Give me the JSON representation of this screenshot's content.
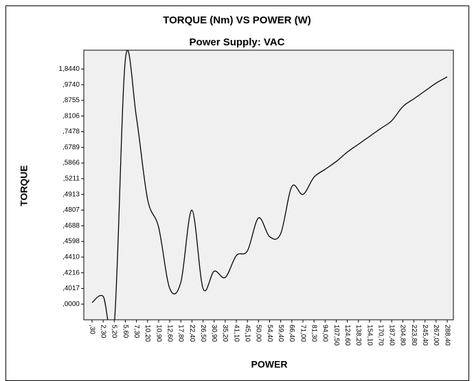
{
  "chart_data": {
    "type": "line",
    "title": "TORQUE (Nm) VS POWER (W)",
    "subtitle": "Power Supply:  VAC",
    "xlabel": "POWER",
    "ylabel": "TORQUE",
    "categories": [
      ",30",
      "2,30",
      "5,20",
      "5,60",
      "7,30",
      "10,20",
      "10,90",
      "12,60",
      "17,80",
      "22,40",
      "26,50",
      "30,90",
      "35,20",
      "41,10",
      "45,10",
      "50,00",
      "54,40",
      "59,40",
      "66,40",
      "71,00",
      "81,30",
      "94,00",
      "107,50",
      "124,60",
      "138,20",
      "154,10",
      "170,70",
      "187,40",
      "204,80",
      "223,80",
      "245,40",
      "267,00",
      "288,40"
    ],
    "series": [
      {
        "name": "TORQUE",
        "color": "#000000",
        "values": [
          0.1,
          0.5,
          -1.3,
          15.6,
          11.9,
          6.7,
          4.9,
          1.0,
          1.4,
          6.0,
          1.0,
          2.1,
          1.7,
          3.1,
          3.4,
          5.5,
          4.3,
          4.5,
          7.5,
          7.0,
          8.1,
          8.6,
          9.1,
          9.7,
          10.2,
          10.7,
          11.2,
          11.7,
          12.6,
          13.1,
          13.6,
          14.1,
          14.5
        ]
      }
    ],
    "ylim": [
      -1,
      16.2
    ],
    "yticks": [
      {
        "value": 0,
        "label": ",0000"
      },
      {
        "value": 1,
        "label": ",4017"
      },
      {
        "value": 2,
        "label": ",4216"
      },
      {
        "value": 3,
        "label": ",4410"
      },
      {
        "value": 4,
        "label": ",4598"
      },
      {
        "value": 5,
        "label": ",4688"
      },
      {
        "value": 6,
        "label": ",4807"
      },
      {
        "value": 7,
        "label": ",4913"
      },
      {
        "value": 8,
        "label": ",5211"
      },
      {
        "value": 9,
        "label": ",5866"
      },
      {
        "value": 10,
        "label": ",6789"
      },
      {
        "value": 11,
        "label": ",7478"
      },
      {
        "value": 12,
        "label": ",8106"
      },
      {
        "value": 13,
        "label": ",8755"
      },
      {
        "value": 14,
        "label": ",9740"
      },
      {
        "value": 15,
        "label": "1,8440"
      }
    ],
    "grid": false
  }
}
